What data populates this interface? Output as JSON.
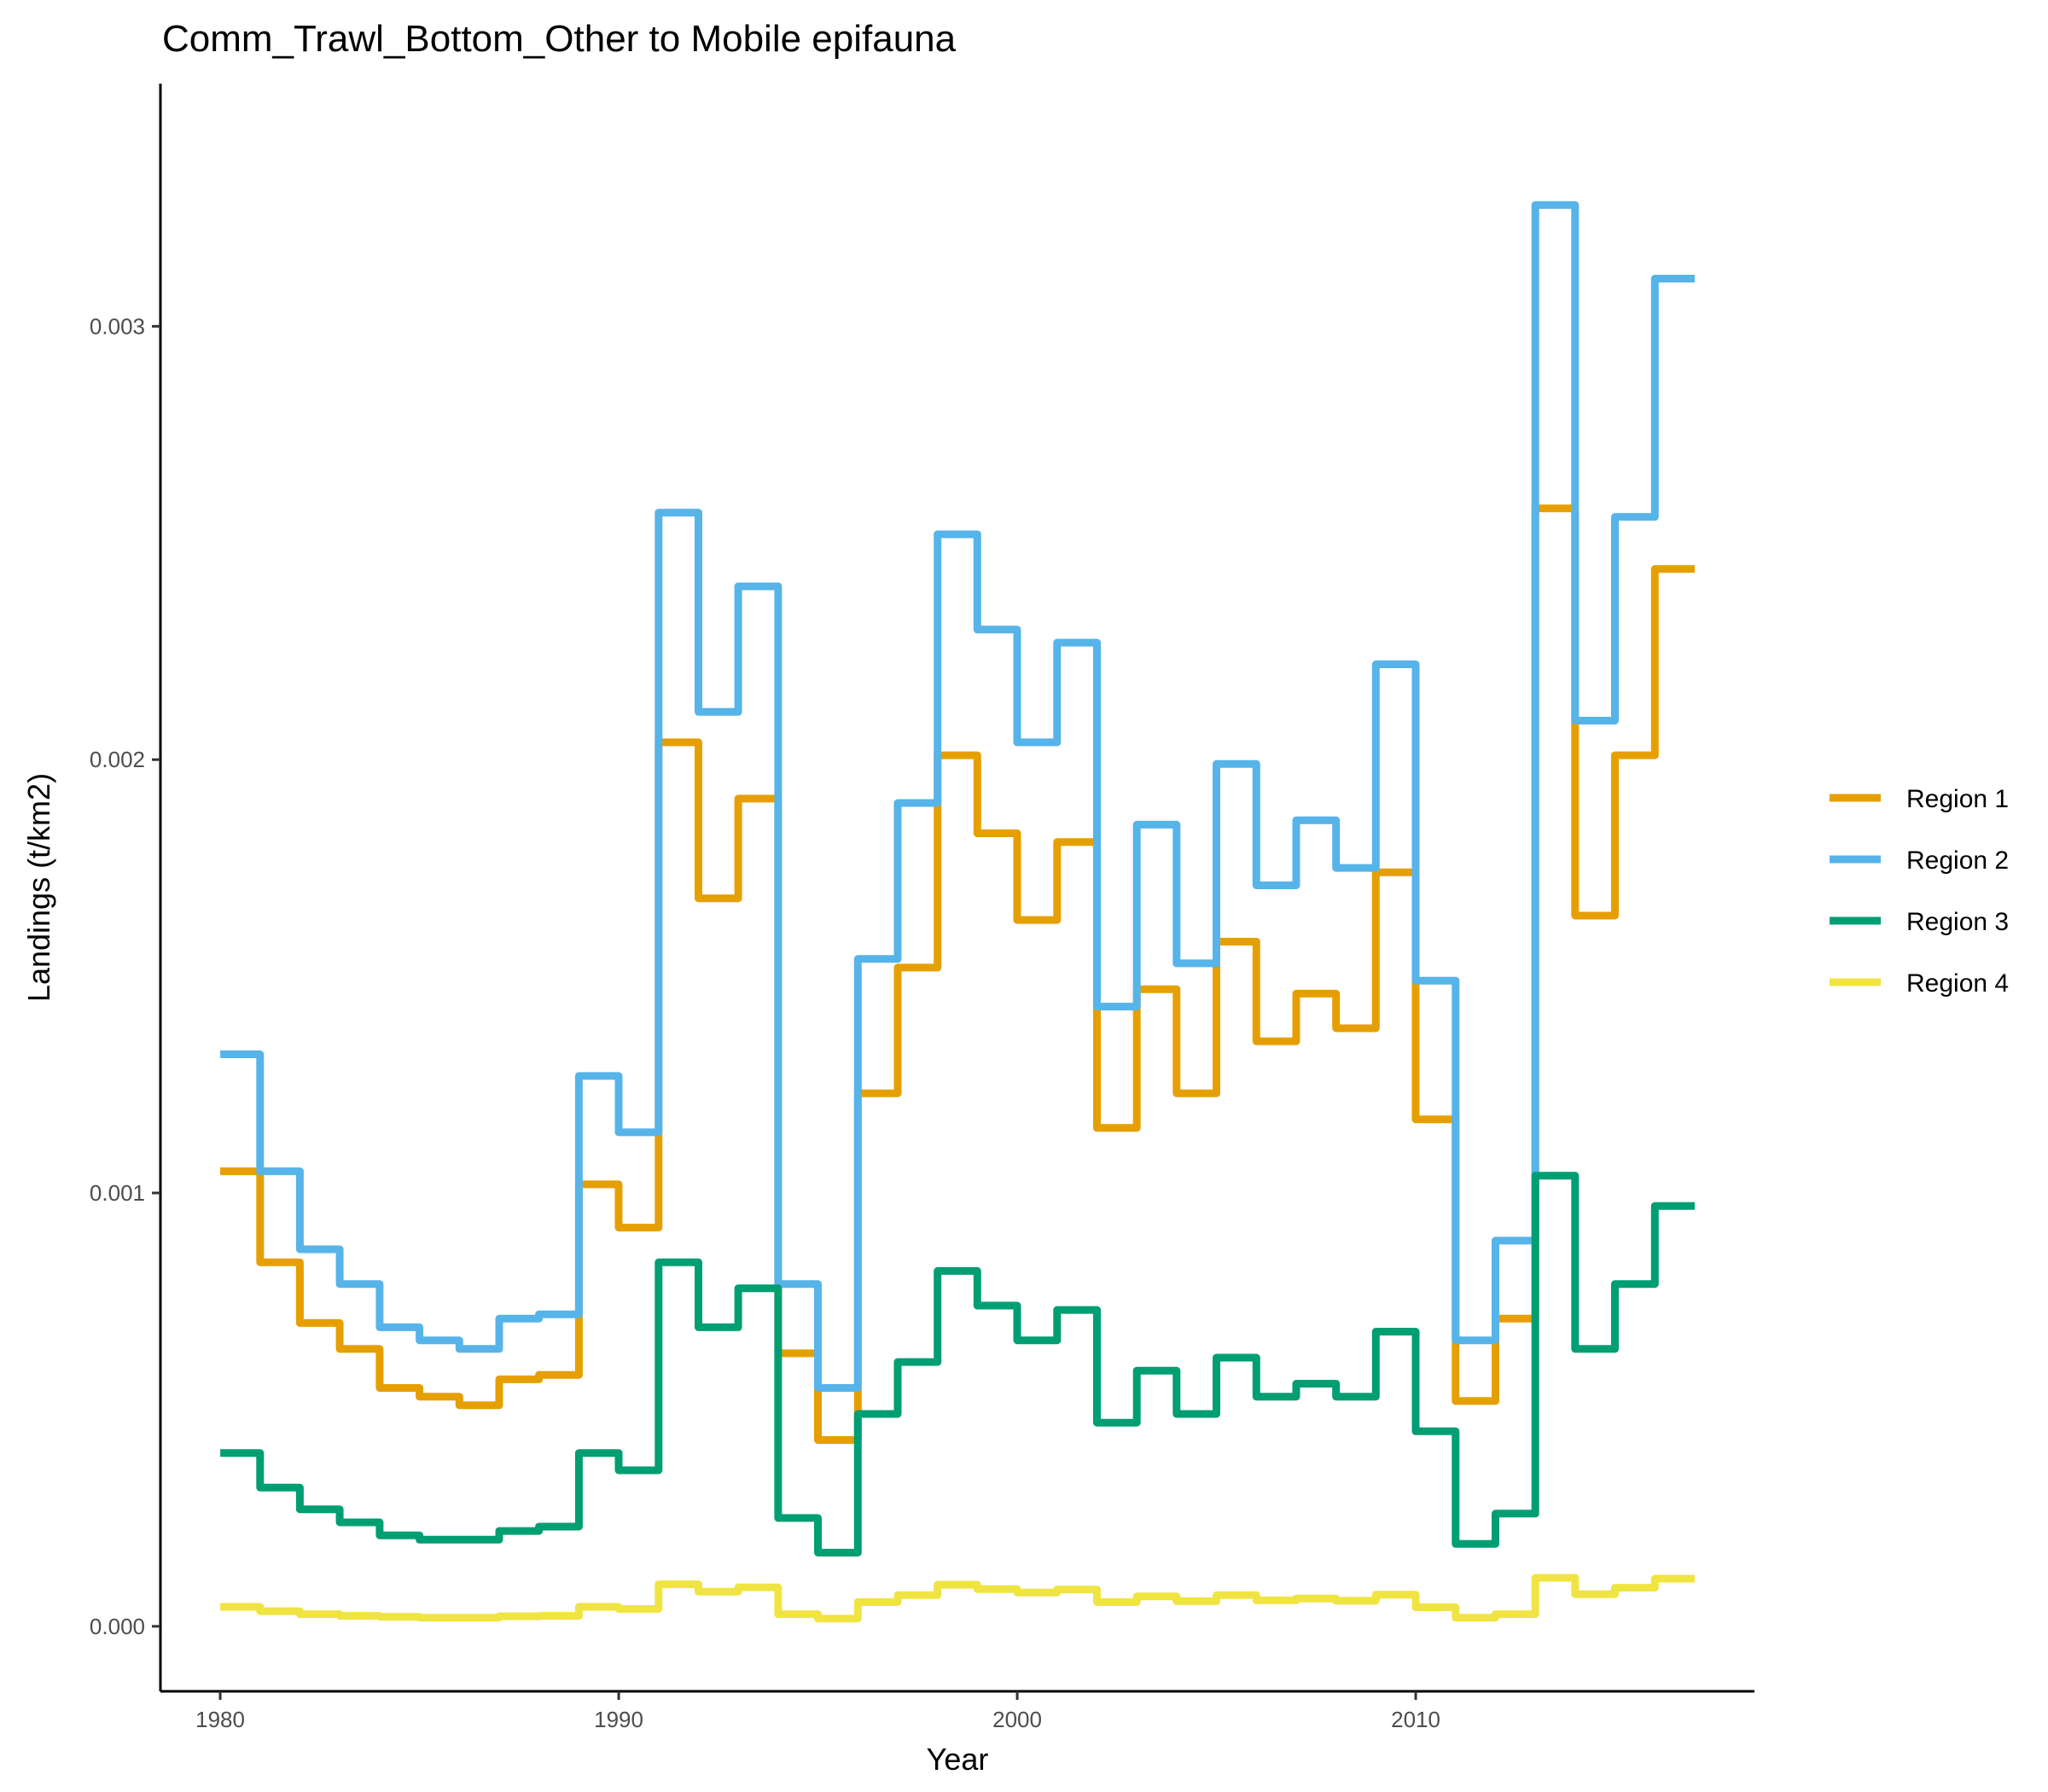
{
  "chart_data": {
    "type": "line",
    "title": "Comm_Trawl_Bottom_Other to Mobile epifauna",
    "xlabel": "Year",
    "ylabel": "Landings (t/km2)",
    "xlim": [
      1978.5,
      2018.5
    ],
    "ylim": [
      -0.00015,
      0.00356
    ],
    "x_ticks": [
      1980,
      1990,
      2000,
      2010
    ],
    "x_tick_labels": [
      "1980",
      "1990",
      "2000",
      "2010"
    ],
    "y_ticks": [
      0.0,
      0.001,
      0.002,
      0.003
    ],
    "y_tick_labels": [
      "0.000",
      "0.001",
      "0.002",
      "0.003"
    ],
    "grid": false,
    "legend_position": "right",
    "step": true,
    "years": [
      1980,
      1981,
      1982,
      1983,
      1984,
      1985,
      1986,
      1987,
      1988,
      1989,
      1990,
      1991,
      1992,
      1993,
      1994,
      1995,
      1996,
      1997,
      1998,
      1999,
      2000,
      2001,
      2002,
      2003,
      2004,
      2005,
      2006,
      2007,
      2008,
      2009,
      2010,
      2011,
      2012,
      2013,
      2014,
      2015,
      2016
    ],
    "series": [
      {
        "name": "Region 1",
        "color": "#E69F00",
        "values": [
          0.00105,
          0.00084,
          0.0007,
          0.00064,
          0.00055,
          0.00053,
          0.00051,
          0.00057,
          0.00058,
          0.00102,
          0.00092,
          0.00204,
          0.00168,
          0.00191,
          0.00063,
          0.00043,
          0.00123,
          0.00152,
          0.00201,
          0.00183,
          0.00163,
          0.00181,
          0.00115,
          0.00147,
          0.00123,
          0.00158,
          0.00135,
          0.00146,
          0.00138,
          0.00174,
          0.00117,
          0.00052,
          0.00071,
          0.00258,
          0.00164,
          0.00201,
          0.00244
        ]
      },
      {
        "name": "Region 2",
        "color": "#56B4E9",
        "values": [
          0.00132,
          0.00105,
          0.00087,
          0.00079,
          0.00069,
          0.00066,
          0.00064,
          0.00071,
          0.00072,
          0.00127,
          0.00114,
          0.00257,
          0.00211,
          0.0024,
          0.00079,
          0.00055,
          0.00154,
          0.0019,
          0.00252,
          0.0023,
          0.00204,
          0.00227,
          0.00143,
          0.00185,
          0.00153,
          0.00199,
          0.00171,
          0.00186,
          0.00175,
          0.00222,
          0.00149,
          0.00066,
          0.00089,
          0.00328,
          0.00209,
          0.00256,
          0.00311
        ]
      },
      {
        "name": "Region 3",
        "color": "#009E73",
        "values": [
          0.0004,
          0.00032,
          0.00027,
          0.00024,
          0.00021,
          0.0002,
          0.0002,
          0.00022,
          0.00023,
          0.0004,
          0.00036,
          0.00084,
          0.00069,
          0.00078,
          0.00025,
          0.00017,
          0.00049,
          0.00061,
          0.00082,
          0.00074,
          0.00066,
          0.00073,
          0.00047,
          0.00059,
          0.00049,
          0.00062,
          0.00053,
          0.00056,
          0.00053,
          0.00068,
          0.00045,
          0.00019,
          0.00026,
          0.00104,
          0.00064,
          0.00079,
          0.00097
        ]
      },
      {
        "name": "Region 4",
        "color": "#F0E442",
        "values": [
          4.5e-05,
          3.5e-05,
          2.8e-05,
          2.4e-05,
          2.2e-05,
          2e-05,
          2e-05,
          2.3e-05,
          2.4e-05,
          4.5e-05,
          4e-05,
          9.7e-05,
          8e-05,
          9e-05,
          2.8e-05,
          1.8e-05,
          5.6e-05,
          7.2e-05,
          9.6e-05,
          8.6e-05,
          7.8e-05,
          8.5e-05,
          5.6e-05,
          6.9e-05,
          5.8e-05,
          7.2e-05,
          6e-05,
          6.4e-05,
          5.9e-05,
          7.3e-05,
          4.4e-05,
          2e-05,
          2.8e-05,
          0.000112,
          7.4e-05,
          8.9e-05,
          0.00011
        ]
      }
    ]
  }
}
